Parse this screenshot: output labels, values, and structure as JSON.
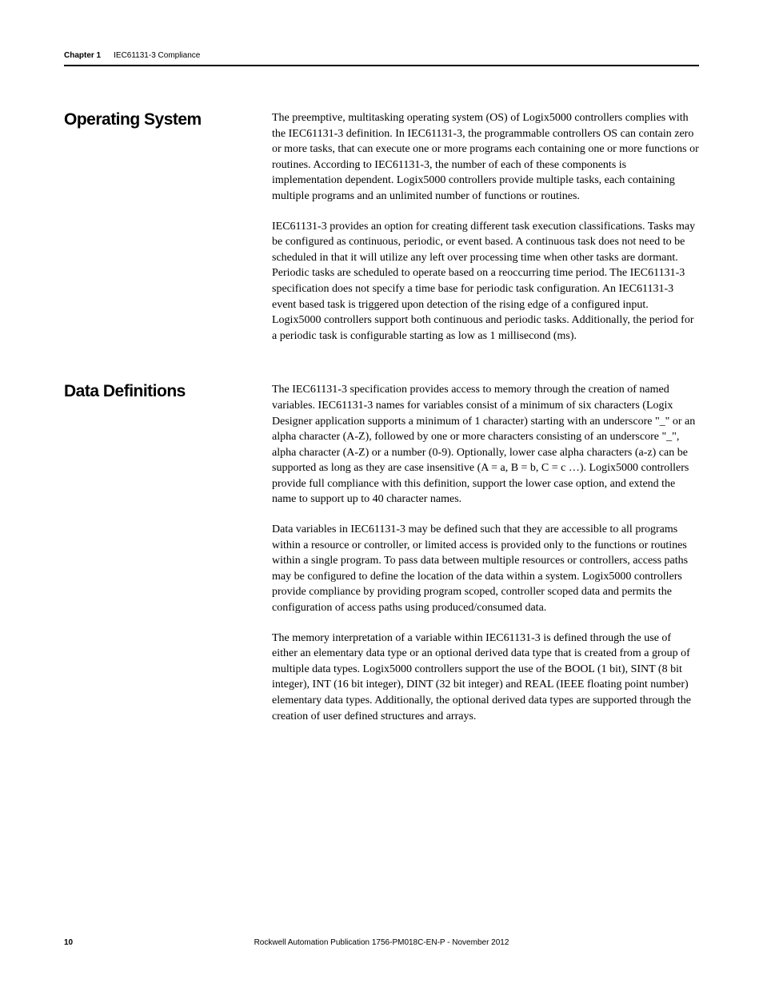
{
  "header": {
    "chapter_label": "Chapter 1",
    "chapter_title": "IEC61131-3 Compliance"
  },
  "sections": [
    {
      "heading": "Operating System",
      "paragraphs": [
        "The preemptive, multitasking operating system (OS) of Logix5000 controllers complies with the IEC61131-3 definition. In IEC61131-3, the programmable controllers OS can contain zero or more tasks, that can execute one or more programs each containing one or more functions or routines. According to IEC61131-3, the number of each of these components is implementation dependent. Logix5000 controllers provide multiple tasks, each containing multiple programs and an unlimited number of functions or routines.",
        "IEC61131-3 provides an option for creating different task execution classifications. Tasks may be configured as continuous, periodic, or event based. A continuous task does not need to be scheduled in that it will utilize any left over processing time when other tasks are dormant. Periodic tasks are scheduled to operate based on a reoccurring time period. The IEC61131-3 specification does not specify a time base for periodic task configuration. An IEC61131-3 event based task is triggered upon detection of the rising edge of a configured input. Logix5000 controllers support both continuous and periodic tasks. Additionally, the period for a periodic task is configurable starting as low as 1 millisecond (ms)."
      ]
    },
    {
      "heading": "Data Definitions",
      "paragraphs": [
        "The IEC61131-3 specification provides access to memory through the creation of named variables. IEC61131-3 names for variables consist of a minimum of six characters (Logix Designer application supports a minimum of 1 character) starting with an underscore \"_\" or an alpha character (A-Z), followed by one or more characters consisting of an underscore \"_\", alpha character (A-Z) or a number (0-9). Optionally, lower case alpha characters (a-z) can be supported as long as they are case insensitive (A = a, B = b, C = c …). Logix5000 controllers provide full compliance with this definition, support the lower case option, and extend the name to support up to 40 character names.",
        "Data variables in IEC61131-3 may be defined such that they are accessible to all programs within a resource or controller, or limited access is provided only to the functions or routines within a single program. To pass data between multiple resources or controllers, access paths may be configured to define the location of the data within a system. Logix5000 controllers provide compliance by providing program scoped, controller scoped data and permits the configuration of access paths using produced/consumed data.",
        "The memory interpretation of a variable within IEC61131-3 is defined through the use of either an elementary data type or an optional derived data type that is created from a group of multiple data types. Logix5000 controllers support the use of the BOOL (1 bit), SINT (8 bit integer), INT (16 bit integer), DINT (32 bit integer) and REAL (IEEE floating point number) elementary data types. Additionally, the optional derived data types are supported through the creation of user defined structures and arrays."
      ]
    }
  ],
  "footer": {
    "page_number": "10",
    "publication": "Rockwell Automation Publication 1756-PM018C-EN-P - November 2012"
  }
}
